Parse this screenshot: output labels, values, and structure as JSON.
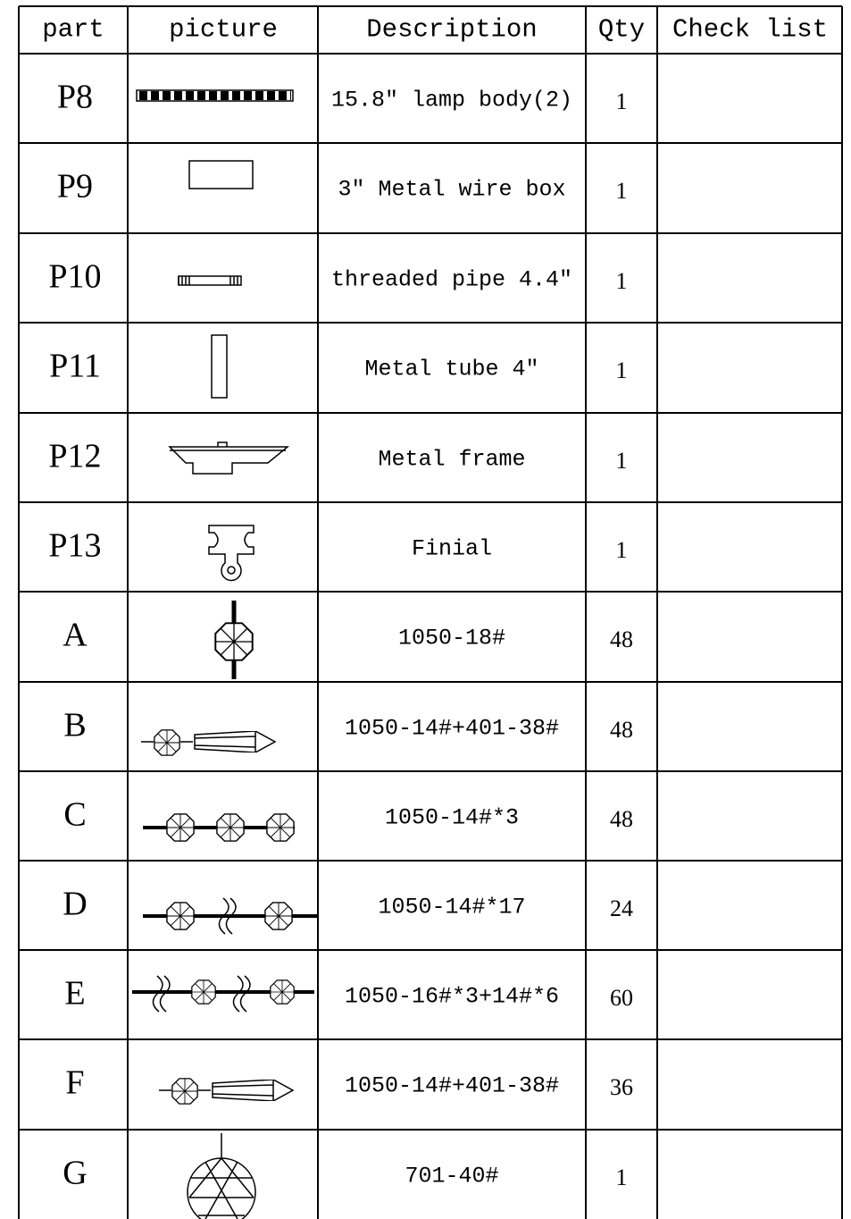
{
  "table": {
    "header": [
      "part",
      "picture",
      "Description",
      "Qty",
      "Check list"
    ],
    "rows": [
      [
        "P8",
        "15.8″ lamp body(2)",
        1
      ],
      [
        "P9",
        "3″ Metal wire box",
        1
      ],
      [
        "P10",
        "threaded pipe 4.4″",
        1
      ],
      [
        "P11",
        "Metal tube 4″",
        1
      ],
      [
        "P12",
        "Metal frame",
        1
      ],
      [
        "P13",
        "Finial",
        1
      ],
      [
        "A",
        "1050-18#",
        48
      ],
      [
        "B",
        "1050-14#+401-38#",
        48
      ],
      [
        "C",
        "1050-14#*3",
        48
      ],
      [
        "D",
        "1050-14#*17",
        24
      ],
      [
        "E",
        "1050-16#*3+14#*6",
        60
      ],
      [
        "F",
        "1050-14#+401-38#",
        36
      ],
      [
        "G",
        "701-40#",
        1
      ]
    ]
  }
}
